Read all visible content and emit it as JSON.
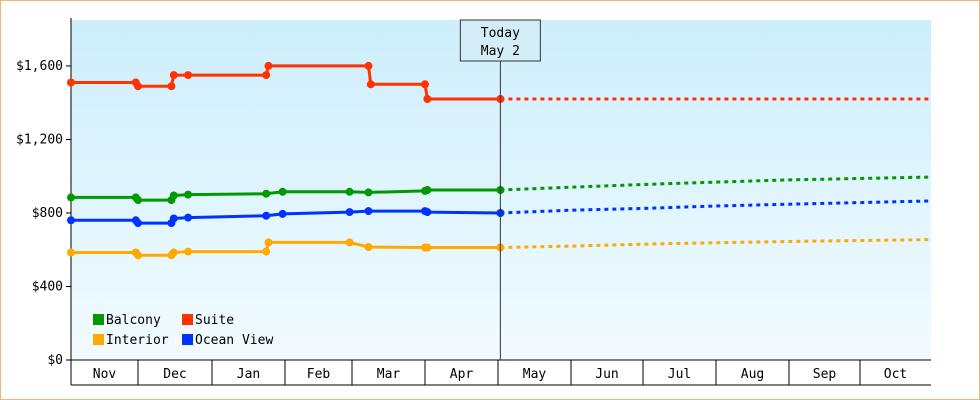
{
  "chart_data": {
    "type": "line",
    "title": "",
    "xlabel": "",
    "ylabel": "",
    "ylim": [
      0,
      1850
    ],
    "yticks": [
      "$0",
      "$400",
      "$800",
      "$1,200",
      "$1,600"
    ],
    "ytick_values": [
      0,
      400,
      800,
      1200,
      1600
    ],
    "months": [
      "Nov",
      "Dec",
      "Jan",
      "Feb",
      "Mar",
      "Apr",
      "May",
      "Jun",
      "Jul",
      "Aug",
      "Sep",
      "Oct"
    ],
    "today": {
      "line1": "Today",
      "line2": "May 2",
      "x": "May 2"
    },
    "grid": false,
    "legend_position": "bottom-left",
    "series": [
      {
        "name": "Suite",
        "color": "#ff3300",
        "points": [
          [
            "Nov 1",
            1510
          ],
          [
            "Nov 30",
            1510
          ],
          [
            "Dec 1",
            1490
          ],
          [
            "Dec 15",
            1490
          ],
          [
            "Dec 16",
            1550
          ],
          [
            "Dec 22",
            1550
          ],
          [
            "Jan 24",
            1550
          ],
          [
            "Jan 25",
            1600
          ],
          [
            "Mar 8",
            1600
          ],
          [
            "Mar 9",
            1500
          ],
          [
            "Apr 1",
            1500
          ],
          [
            "Apr 2",
            1420
          ],
          [
            "May 2",
            1420
          ]
        ],
        "forecast": [
          [
            "May 2",
            1420
          ],
          [
            "Oct 31",
            1420
          ]
        ]
      },
      {
        "name": "Balcony",
        "color": "#009900",
        "points": [
          [
            "Nov 1",
            885
          ],
          [
            "Nov 30",
            885
          ],
          [
            "Dec 1",
            870
          ],
          [
            "Dec 15",
            870
          ],
          [
            "Dec 16",
            895
          ],
          [
            "Dec 22",
            900
          ],
          [
            "Jan 24",
            905
          ],
          [
            "Jan 31",
            915
          ],
          [
            "Feb 28",
            915
          ],
          [
            "Mar 8",
            912
          ],
          [
            "Apr 1",
            920
          ],
          [
            "Apr 2",
            925
          ],
          [
            "May 2",
            925
          ]
        ],
        "forecast": [
          [
            "May 2",
            925
          ],
          [
            "Jun 1",
            940
          ],
          [
            "Jul 1",
            955
          ],
          [
            "Aug 1",
            968
          ],
          [
            "Sep 1",
            980
          ],
          [
            "Oct 31",
            995
          ]
        ]
      },
      {
        "name": "Ocean View",
        "color": "#0033ff",
        "points": [
          [
            "Nov 1",
            760
          ],
          [
            "Nov 30",
            760
          ],
          [
            "Dec 1",
            745
          ],
          [
            "Dec 15",
            745
          ],
          [
            "Dec 16",
            770
          ],
          [
            "Dec 22",
            775
          ],
          [
            "Jan 24",
            785
          ],
          [
            "Jan 31",
            795
          ],
          [
            "Feb 28",
            805
          ],
          [
            "Mar 8",
            810
          ],
          [
            "Apr 1",
            810
          ],
          [
            "Apr 2",
            805
          ],
          [
            "May 2",
            800
          ]
        ],
        "forecast": [
          [
            "May 2",
            800
          ],
          [
            "Jun 1",
            815
          ],
          [
            "Jul 1",
            825
          ],
          [
            "Aug 1",
            838
          ],
          [
            "Sep 1",
            848
          ],
          [
            "Oct 31",
            865
          ]
        ]
      },
      {
        "name": "Interior",
        "color": "#ffaa00",
        "points": [
          [
            "Nov 1",
            585
          ],
          [
            "Nov 30",
            585
          ],
          [
            "Dec 1",
            570
          ],
          [
            "Dec 15",
            570
          ],
          [
            "Dec 16",
            585
          ],
          [
            "Dec 22",
            590
          ],
          [
            "Jan 24",
            590
          ],
          [
            "Jan 25",
            640
          ],
          [
            "Feb 28",
            640
          ],
          [
            "Mar 8",
            615
          ],
          [
            "Apr 1",
            612
          ],
          [
            "Apr 2",
            612
          ],
          [
            "May 2",
            612
          ]
        ],
        "forecast": [
          [
            "May 2",
            612
          ],
          [
            "Jun 1",
            620
          ],
          [
            "Jul 1",
            630
          ],
          [
            "Aug 1",
            638
          ],
          [
            "Sep 1",
            645
          ],
          [
            "Oct 31",
            655
          ]
        ]
      }
    ],
    "legend": [
      {
        "name": "Balcony",
        "color": "#009900"
      },
      {
        "name": "Suite",
        "color": "#ff3300"
      },
      {
        "name": "Interior",
        "color": "#ffaa00"
      },
      {
        "name": "Ocean View",
        "color": "#0033ff"
      }
    ]
  }
}
